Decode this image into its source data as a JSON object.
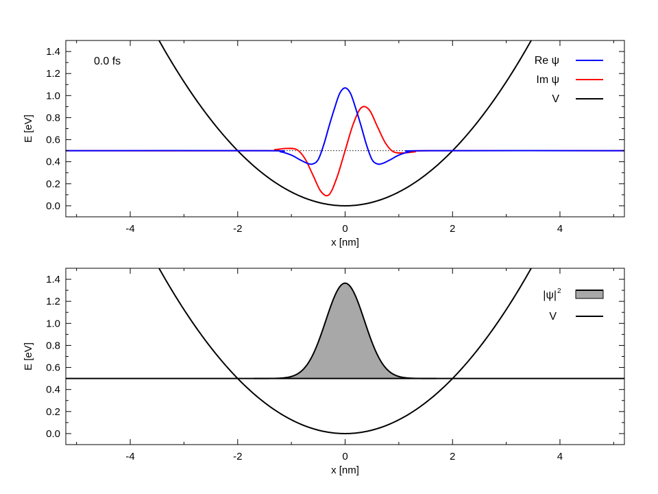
{
  "colors": {
    "re_psi": "#0000ff",
    "im_psi": "#ff0000",
    "potential": "#000000",
    "density_fill": "#a8a8a8",
    "axes": "#000000"
  },
  "chart_data": [
    {
      "type": "line",
      "annotation": "0.0 fs",
      "xlabel": "x [nm]",
      "ylabel": "E [eV]",
      "xlim": [
        -5.2,
        5.2
      ],
      "ylim": [
        -0.1,
        1.5
      ],
      "x_ticks": [
        -4,
        -2,
        0,
        2,
        4
      ],
      "x_tick_labels": [
        "-4",
        "-2",
        "0",
        "2",
        "4"
      ],
      "y_ticks": [
        0,
        0.2,
        0.4,
        0.6,
        0.8,
        1.0,
        1.2,
        1.4
      ],
      "y_tick_labels": [
        "0.0",
        "0.2",
        "0.4",
        "0.6",
        "0.8",
        "1.0",
        "1.2",
        "1.4"
      ],
      "grid": false,
      "legend_position": "top-right",
      "series": [
        {
          "name": "Re ψ",
          "color": "#0000ff",
          "x": [
            -5.2,
            -1.5,
            -1.2,
            -1.0,
            -0.85,
            -0.7,
            -0.6,
            -0.5,
            -0.4,
            -0.3,
            -0.2,
            -0.1,
            0.0,
            0.1,
            0.2,
            0.3,
            0.4,
            0.5,
            0.6,
            0.7,
            0.85,
            1.0,
            1.2,
            1.5,
            5.2
          ],
          "y": [
            0.5,
            0.5,
            0.49,
            0.46,
            0.42,
            0.385,
            0.38,
            0.42,
            0.55,
            0.72,
            0.88,
            1.02,
            1.07,
            1.02,
            0.88,
            0.72,
            0.55,
            0.42,
            0.38,
            0.385,
            0.42,
            0.46,
            0.49,
            0.5,
            0.5
          ]
        },
        {
          "name": "Im ψ",
          "color": "#ff0000",
          "x": [
            -5.2,
            -1.6,
            -1.3,
            -1.1,
            -0.9,
            -0.75,
            -0.6,
            -0.45,
            -0.3,
            -0.15,
            0.0,
            0.15,
            0.3,
            0.45,
            0.6,
            0.75,
            0.9,
            1.1,
            1.3,
            1.6,
            5.2
          ],
          "y": [
            0.5,
            0.5,
            0.51,
            0.52,
            0.51,
            0.43,
            0.28,
            0.13,
            0.1,
            0.26,
            0.5,
            0.74,
            0.89,
            0.87,
            0.72,
            0.57,
            0.49,
            0.48,
            0.49,
            0.5,
            0.5
          ]
        },
        {
          "name": "V",
          "color": "#000000",
          "formula": "0.125*x^2"
        }
      ],
      "reference_line": {
        "y": 0.5,
        "from_x": -1.6,
        "to_x": 1.6,
        "style": "dotted"
      }
    },
    {
      "type": "area",
      "xlabel": "x [nm]",
      "ylabel": "E [eV]",
      "xlim": [
        -5.2,
        5.2
      ],
      "ylim": [
        -0.1,
        1.5
      ],
      "x_ticks": [
        -4,
        -2,
        0,
        2,
        4
      ],
      "x_tick_labels": [
        "-4",
        "-2",
        "0",
        "2",
        "4"
      ],
      "y_ticks": [
        0,
        0.2,
        0.4,
        0.6,
        0.8,
        1.0,
        1.2,
        1.4
      ],
      "y_tick_labels": [
        "0.0",
        "0.2",
        "0.4",
        "0.6",
        "0.8",
        "1.0",
        "1.2",
        "1.4"
      ],
      "grid": false,
      "legend_position": "top-right",
      "series": [
        {
          "name": "|ψ|",
          "name_superscript": "2",
          "color": "#a8a8a8",
          "baseline": 0.5,
          "peak": 1.365,
          "center": 0.0,
          "width": 0.36
        },
        {
          "name": "V",
          "color": "#000000",
          "formula": "0.125*x^2"
        }
      ],
      "reference_line": {
        "y": 0.5,
        "style": "solid",
        "full_width": true
      }
    }
  ]
}
